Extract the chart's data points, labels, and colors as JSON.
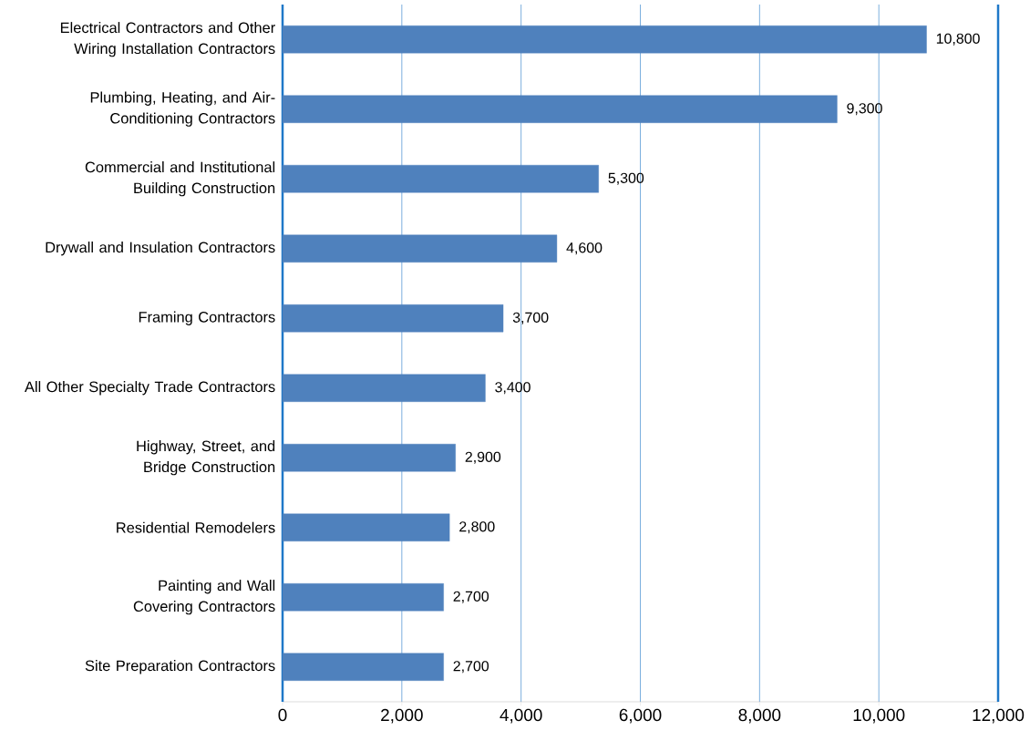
{
  "chart_data": {
    "type": "bar",
    "orientation": "horizontal",
    "categories": [
      "Electrical Contractors and Other Wiring Installation Contractors",
      "Plumbing, Heating, and Air-Conditioning Contractors",
      "Commercial and Institutional Building Construction",
      "Drywall and Insulation Contractors",
      "Framing Contractors",
      "All Other Specialty Trade Contractors",
      "Highway, Street, and Bridge Construction",
      "Residential Remodelers",
      "Painting and Wall Covering Contractors",
      "Site Preparation Contractors"
    ],
    "values": [
      10800,
      9300,
      5300,
      4600,
      3700,
      3400,
      2900,
      2800,
      2700,
      2700
    ],
    "value_labels": [
      "10,800",
      "9,300",
      "5,300",
      "4,600",
      "3,700",
      "3,400",
      "2,900",
      "2,800",
      "2,700",
      "2,700"
    ],
    "color": "#4f81bd",
    "xlim": [
      0,
      12000
    ],
    "xticks": [
      0,
      {
        "value": 2000,
        "label": "2,000"
      },
      {
        "value": 4000,
        "label": "4,000"
      },
      {
        "value": 6000,
        "label": "6,000"
      },
      {
        "value": 8000,
        "label": "8,000"
      },
      {
        "value": 10000,
        "label": "10,000"
      },
      {
        "value": 12000,
        "label": "12,000"
      }
    ],
    "grid": "x"
  }
}
